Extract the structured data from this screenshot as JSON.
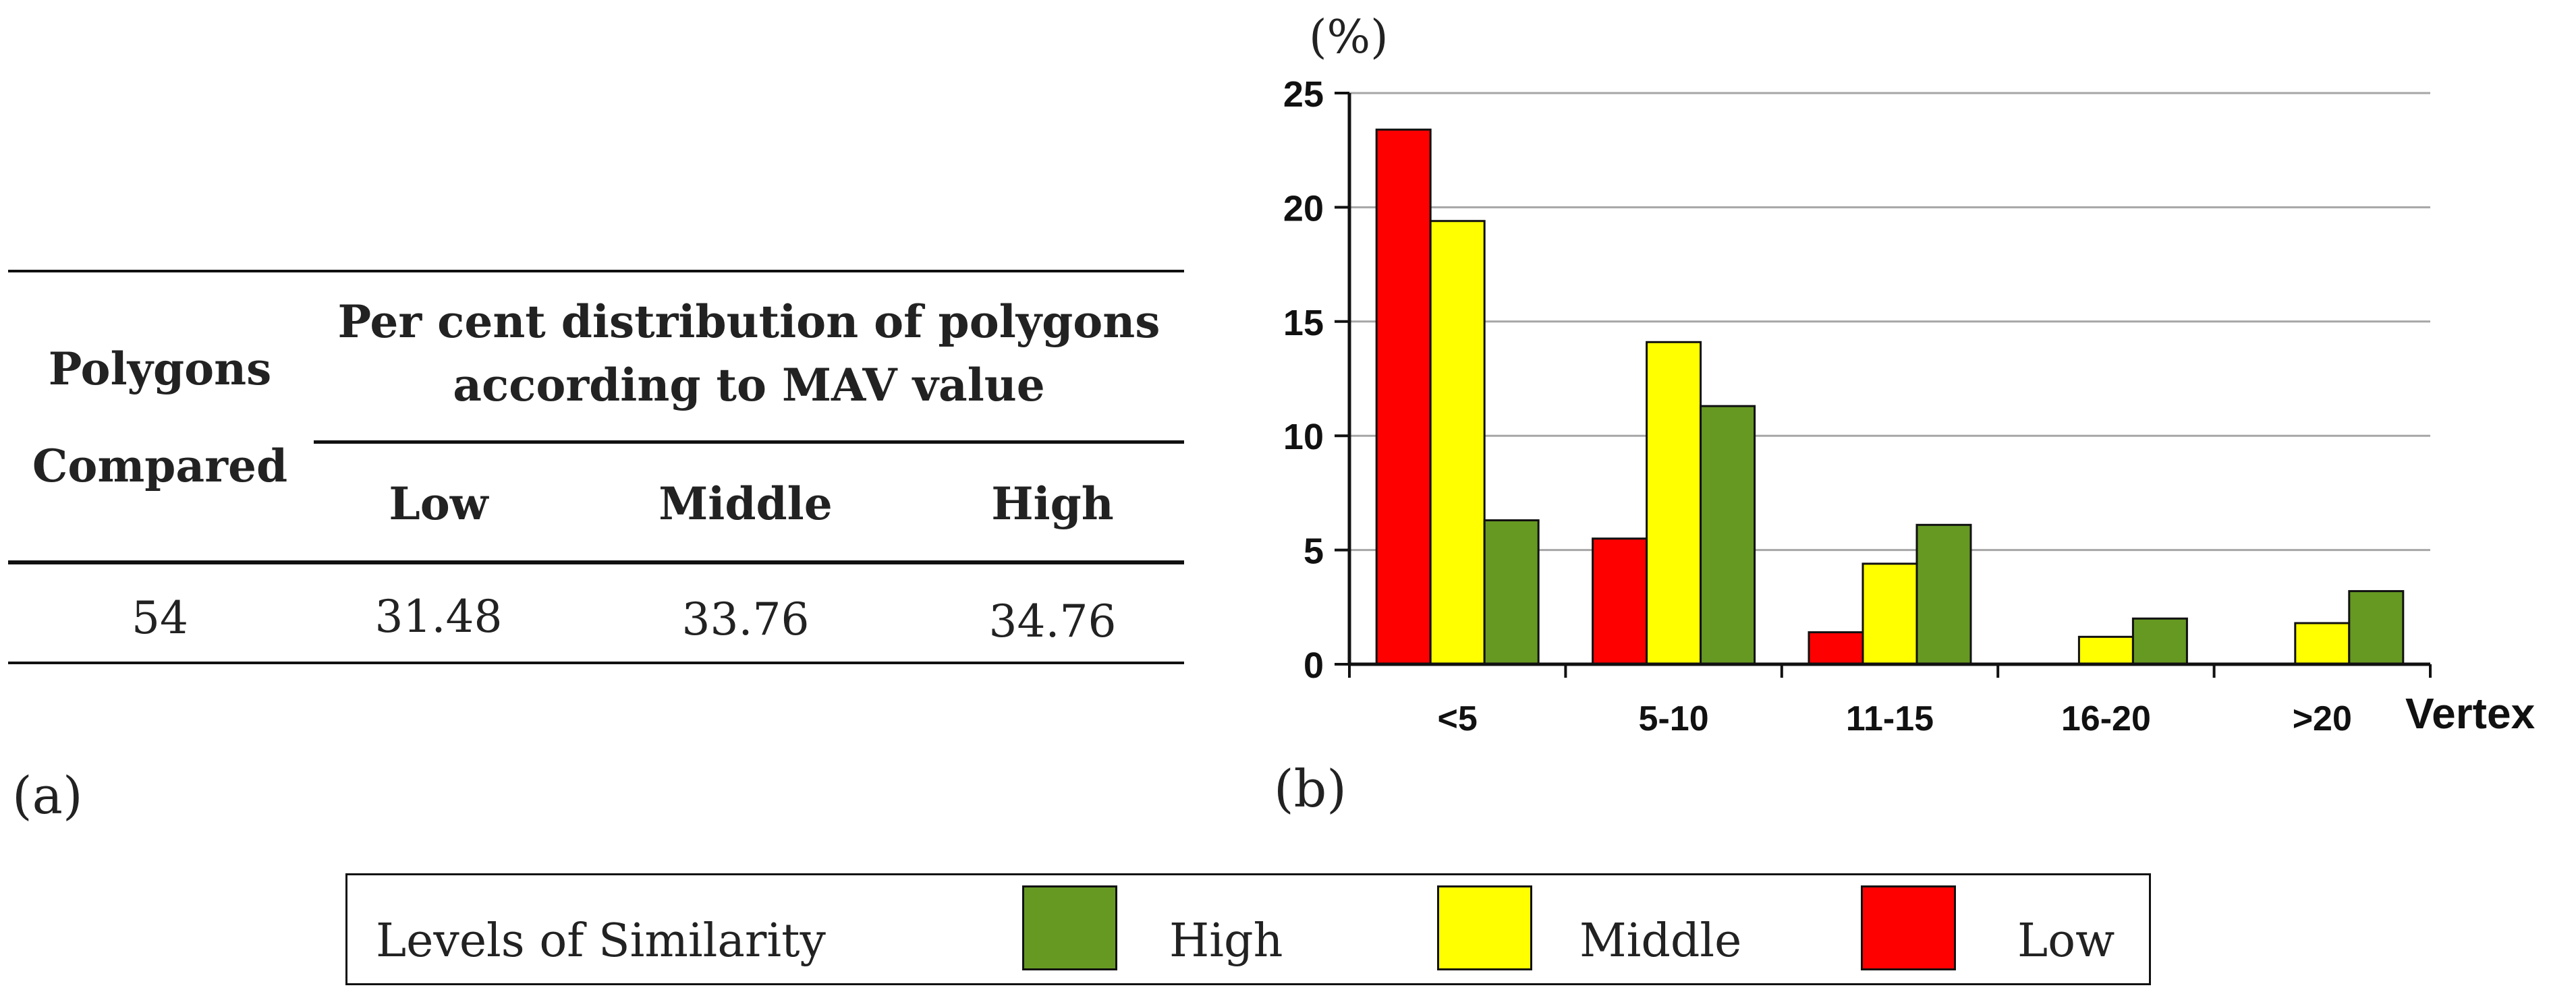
{
  "table": {
    "headers": {
      "polygons_line1": "Polygons",
      "polygons_line2": "Compared",
      "distribution_line1": "Per cent distribution of polygons",
      "distribution_line2": "according to MAV value",
      "low": "Low",
      "middle": "Middle",
      "high": "High"
    },
    "row": {
      "polygons": "54",
      "low": "31.48",
      "middle": "33.76",
      "high": "34.76"
    },
    "panel_label": "(a)"
  },
  "chart_data": {
    "type": "bar",
    "panel_label": "(b)",
    "ylabel": "(%)",
    "xlabel": "Vertex",
    "ylim": [
      0,
      25
    ],
    "yticks": [
      "0",
      "5",
      "10",
      "15",
      "20",
      "25"
    ],
    "grid": true,
    "categories": [
      "<5",
      "5-10",
      "11-15",
      "16-20",
      ">20"
    ],
    "series": [
      {
        "name": "Low",
        "color": "#ff0000",
        "values": [
          23.4,
          5.5,
          1.4,
          0,
          0
        ]
      },
      {
        "name": "Middle",
        "color": "#ffff00",
        "values": [
          19.4,
          14.1,
          4.4,
          1.2,
          1.8
        ]
      },
      {
        "name": "High",
        "color": "#669922",
        "values": [
          6.3,
          11.3,
          6.1,
          2.0,
          3.2
        ]
      }
    ]
  },
  "legend": {
    "title": "Levels of Similarity",
    "items": [
      {
        "label": "High",
        "color": "#669922"
      },
      {
        "label": "Middle",
        "color": "#ffff00"
      },
      {
        "label": "Low",
        "color": "#ff0000"
      }
    ]
  }
}
